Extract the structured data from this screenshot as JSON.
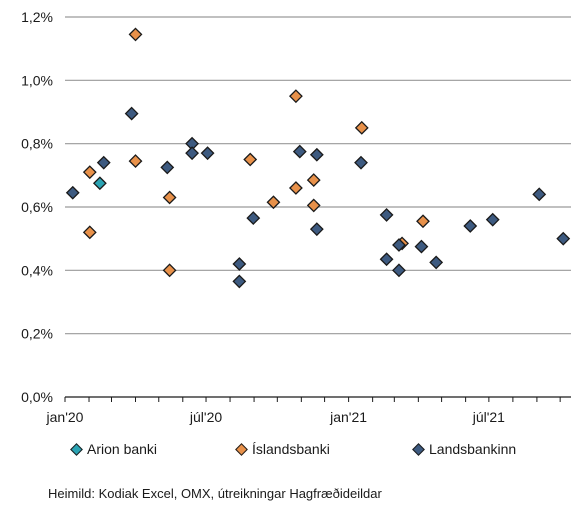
{
  "chart_data": {
    "type": "scatter",
    "title": "",
    "xlabel": "",
    "ylabel": "",
    "x_ticks": [
      "jan'20",
      "júl'20",
      "jan'21",
      "júl'21"
    ],
    "x_range": [
      "2020-01-01",
      "2021-10-15"
    ],
    "y_ticks": [
      "0,0%",
      "0,2%",
      "0,4%",
      "0,6%",
      "0,8%",
      "1,0%",
      "1,2%"
    ],
    "ylim": [
      0,
      1.2
    ],
    "y_unit": "%",
    "grid": "horizontal",
    "legend_position": "bottom",
    "series": [
      {
        "name": "Arion banki",
        "color": "#2aa3b3",
        "marker": "diamond",
        "points": [
          {
            "x": "2020-02-15",
            "y": 0.675
          }
        ]
      },
      {
        "name": "Íslandsbanki",
        "color": "#e8914a",
        "marker": "diamond",
        "points": [
          {
            "x": "2020-02-02",
            "y": 0.71
          },
          {
            "x": "2020-02-02",
            "y": 0.52
          },
          {
            "x": "2020-04-01",
            "y": 1.145
          },
          {
            "x": "2020-04-01",
            "y": 0.745
          },
          {
            "x": "2020-05-15",
            "y": 0.63
          },
          {
            "x": "2020-05-15",
            "y": 0.4
          },
          {
            "x": "2020-08-27",
            "y": 0.75
          },
          {
            "x": "2020-09-26",
            "y": 0.615
          },
          {
            "x": "2020-10-25",
            "y": 0.95
          },
          {
            "x": "2020-10-25",
            "y": 0.66
          },
          {
            "x": "2020-11-17",
            "y": 0.685
          },
          {
            "x": "2020-11-17",
            "y": 0.605
          },
          {
            "x": "2021-01-18",
            "y": 0.85
          },
          {
            "x": "2021-03-11",
            "y": 0.485
          },
          {
            "x": "2021-04-07",
            "y": 0.555
          }
        ]
      },
      {
        "name": "Landsbankinn",
        "color": "#3d5a80",
        "marker": "diamond",
        "points": [
          {
            "x": "2020-01-11",
            "y": 0.645
          },
          {
            "x": "2020-02-20",
            "y": 0.74
          },
          {
            "x": "2020-03-27",
            "y": 0.895
          },
          {
            "x": "2020-05-12",
            "y": 0.725
          },
          {
            "x": "2020-06-13",
            "y": 0.8
          },
          {
            "x": "2020-06-13",
            "y": 0.77
          },
          {
            "x": "2020-07-03",
            "y": 0.77
          },
          {
            "x": "2020-08-13",
            "y": 0.42
          },
          {
            "x": "2020-08-13",
            "y": 0.365
          },
          {
            "x": "2020-08-31",
            "y": 0.565
          },
          {
            "x": "2020-10-30",
            "y": 0.775
          },
          {
            "x": "2020-11-21",
            "y": 0.765
          },
          {
            "x": "2020-11-21",
            "y": 0.53
          },
          {
            "x": "2021-01-17",
            "y": 0.74
          },
          {
            "x": "2021-02-19",
            "y": 0.575
          },
          {
            "x": "2021-02-19",
            "y": 0.435
          },
          {
            "x": "2021-03-07",
            "y": 0.48
          },
          {
            "x": "2021-03-07",
            "y": 0.4
          },
          {
            "x": "2021-04-05",
            "y": 0.475
          },
          {
            "x": "2021-04-24",
            "y": 0.425
          },
          {
            "x": "2021-06-07",
            "y": 0.54
          },
          {
            "x": "2021-07-06",
            "y": 0.56
          },
          {
            "x": "2021-09-04",
            "y": 0.64
          },
          {
            "x": "2021-10-05",
            "y": 0.5
          }
        ]
      }
    ]
  },
  "footer": {
    "source": "Heimild: Kodiak Excel, OMX, útreikningar Hagfræðideildar"
  }
}
